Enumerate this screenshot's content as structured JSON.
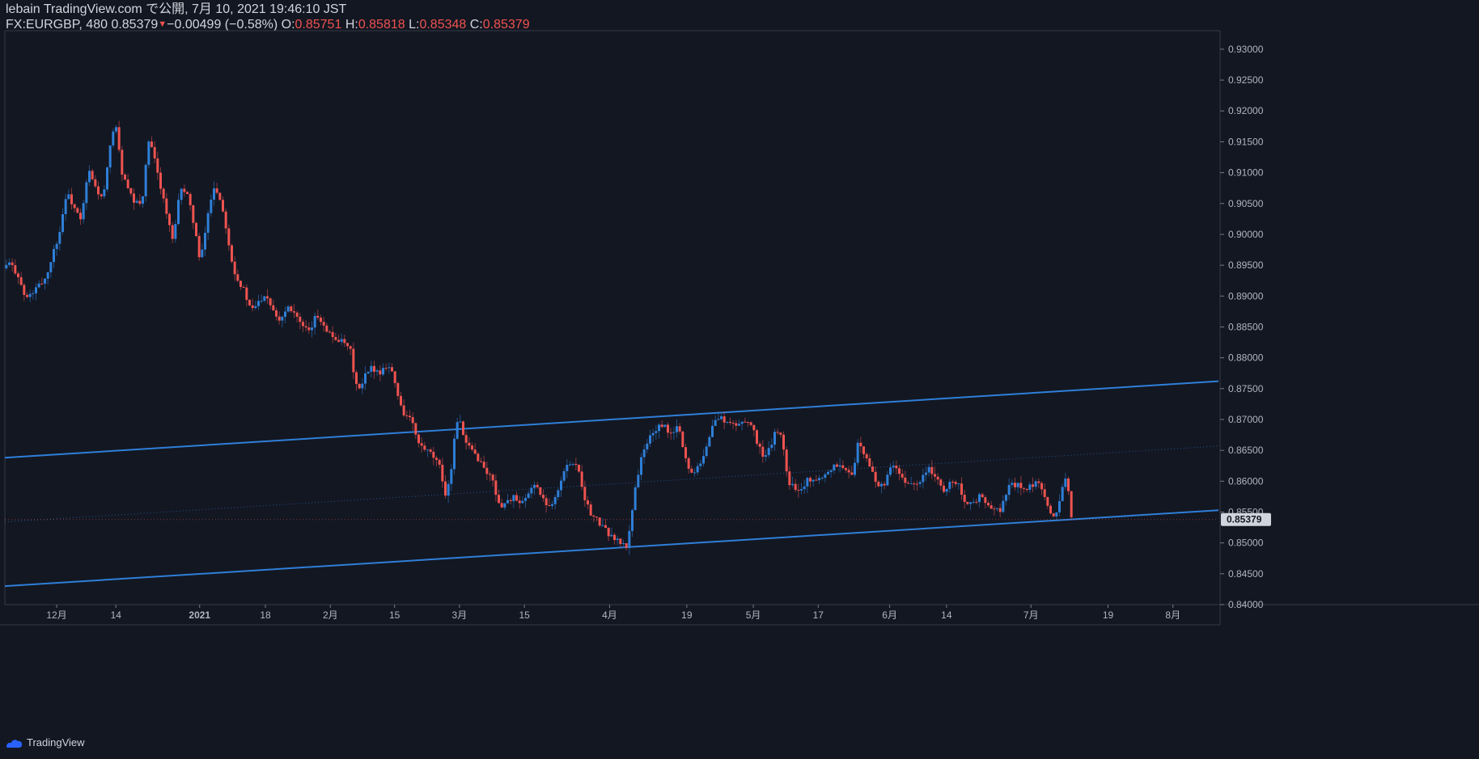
{
  "header": {
    "author_line": "lebain TradingView.com で公開, 7月 10, 2021 19:46:10 JST",
    "symbol": "FX:EURGBP, 480",
    "last": "0.85379",
    "change": "−0.00499 (−0.58%)",
    "o_label": "O:",
    "o_value": "0.85751",
    "h_label": "H:",
    "h_value": "0.85818",
    "l_label": "L:",
    "l_value": "0.85348",
    "c_label": "C:",
    "c_value": "0.85379"
  },
  "footer": {
    "brand": "TradingView"
  },
  "colors": {
    "background": "#131722",
    "up": "#2962ff",
    "candle_up": "#2f7fd8",
    "candle_down": "#ef5350",
    "trendline": "#2f7fd8",
    "axis_text": "#b2b5be",
    "price_label_bg": "#d1d4dc"
  },
  "chart_data": {
    "type": "candlestick",
    "symbol": "FX:EURGBP",
    "interval": "480",
    "ylim": [
      0.84,
      0.933
    ],
    "yticks": [
      "0.93000",
      "0.92500",
      "0.92000",
      "0.91500",
      "0.91000",
      "0.90500",
      "0.90000",
      "0.89500",
      "0.89000",
      "0.88500",
      "0.88000",
      "0.87500",
      "0.87000",
      "0.86500",
      "0.86000",
      "0.85500",
      "0.85000",
      "0.84500",
      "0.84000"
    ],
    "last_price_label": "0.85379",
    "x_ticks": [
      {
        "label": "12月",
        "t": 0.0427
      },
      {
        "label": "14",
        "t": 0.0915
      },
      {
        "label": "2021",
        "t": 0.1605
      },
      {
        "label": "18",
        "t": 0.2147
      },
      {
        "label": "2月",
        "t": 0.2682
      },
      {
        "label": "15",
        "t": 0.3211
      },
      {
        "label": "3月",
        "t": 0.3746
      },
      {
        "label": "15",
        "t": 0.4281
      },
      {
        "label": "4月",
        "t": 0.4983
      },
      {
        "label": "19",
        "t": 0.5619
      },
      {
        "label": "5月",
        "t": 0.6167
      },
      {
        "label": "17",
        "t": 0.6702
      },
      {
        "label": "6月",
        "t": 0.7291
      },
      {
        "label": "14",
        "t": 0.7759
      },
      {
        "label": "7月",
        "t": 0.8455
      },
      {
        "label": "19",
        "t": 0.909
      },
      {
        "label": "8月",
        "t": 0.9625
      }
    ],
    "close_path": [
      [
        0.0,
        0.8945
      ],
      [
        0.005,
        0.8953
      ],
      [
        0.012,
        0.8935
      ],
      [
        0.018,
        0.8895
      ],
      [
        0.024,
        0.8905
      ],
      [
        0.03,
        0.8918
      ],
      [
        0.036,
        0.8933
      ],
      [
        0.04,
        0.8965
      ],
      [
        0.046,
        0.9
      ],
      [
        0.052,
        0.9068
      ],
      [
        0.058,
        0.9045
      ],
      [
        0.064,
        0.902
      ],
      [
        0.07,
        0.9105
      ],
      [
        0.076,
        0.9075
      ],
      [
        0.082,
        0.9055
      ],
      [
        0.088,
        0.914
      ],
      [
        0.092,
        0.919
      ],
      [
        0.097,
        0.9105
      ],
      [
        0.102,
        0.9075
      ],
      [
        0.108,
        0.905
      ],
      [
        0.114,
        0.905
      ],
      [
        0.12,
        0.9155
      ],
      [
        0.124,
        0.9125
      ],
      [
        0.13,
        0.9075
      ],
      [
        0.136,
        0.902
      ],
      [
        0.14,
        0.8985
      ],
      [
        0.146,
        0.908
      ],
      [
        0.152,
        0.906
      ],
      [
        0.158,
        0.901
      ],
      [
        0.162,
        0.895
      ],
      [
        0.166,
        0.9
      ],
      [
        0.17,
        0.905
      ],
      [
        0.174,
        0.908
      ],
      [
        0.178,
        0.906
      ],
      [
        0.182,
        0.903
      ],
      [
        0.188,
        0.896
      ],
      [
        0.192,
        0.893
      ],
      [
        0.198,
        0.891
      ],
      [
        0.204,
        0.8875
      ],
      [
        0.21,
        0.889
      ],
      [
        0.216,
        0.8905
      ],
      [
        0.222,
        0.888
      ],
      [
        0.228,
        0.886
      ],
      [
        0.234,
        0.8885
      ],
      [
        0.24,
        0.8875
      ],
      [
        0.246,
        0.885
      ],
      [
        0.252,
        0.884
      ],
      [
        0.258,
        0.887
      ],
      [
        0.264,
        0.8855
      ],
      [
        0.27,
        0.8835
      ],
      [
        0.276,
        0.883
      ],
      [
        0.282,
        0.882
      ],
      [
        0.286,
        0.881
      ],
      [
        0.29,
        0.876
      ],
      [
        0.294,
        0.8745
      ],
      [
        0.298,
        0.877
      ],
      [
        0.304,
        0.8785
      ],
      [
        0.31,
        0.8775
      ],
      [
        0.316,
        0.879
      ],
      [
        0.32,
        0.878
      ],
      [
        0.324,
        0.8745
      ],
      [
        0.33,
        0.871
      ],
      [
        0.336,
        0.87
      ],
      [
        0.342,
        0.866
      ],
      [
        0.348,
        0.865
      ],
      [
        0.354,
        0.864
      ],
      [
        0.36,
        0.862
      ],
      [
        0.364,
        0.858
      ],
      [
        0.368,
        0.86
      ],
      [
        0.372,
        0.868
      ],
      [
        0.376,
        0.8705
      ],
      [
        0.38,
        0.866
      ],
      [
        0.386,
        0.865
      ],
      [
        0.392,
        0.8635
      ],
      [
        0.398,
        0.8615
      ],
      [
        0.404,
        0.86
      ],
      [
        0.408,
        0.856
      ],
      [
        0.414,
        0.8565
      ],
      [
        0.42,
        0.8575
      ],
      [
        0.426,
        0.856
      ],
      [
        0.432,
        0.8575
      ],
      [
        0.438,
        0.86
      ],
      [
        0.444,
        0.857
      ],
      [
        0.45,
        0.856
      ],
      [
        0.456,
        0.858
      ],
      [
        0.462,
        0.8615
      ],
      [
        0.468,
        0.8635
      ],
      [
        0.474,
        0.862
      ],
      [
        0.478,
        0.858
      ],
      [
        0.484,
        0.8545
      ],
      [
        0.49,
        0.8535
      ],
      [
        0.496,
        0.852
      ],
      [
        0.502,
        0.851
      ],
      [
        0.508,
        0.85
      ],
      [
        0.514,
        0.8493
      ],
      [
        0.516,
        0.852
      ],
      [
        0.52,
        0.8585
      ],
      [
        0.526,
        0.864
      ],
      [
        0.532,
        0.867
      ],
      [
        0.538,
        0.8685
      ],
      [
        0.544,
        0.869
      ],
      [
        0.55,
        0.8675
      ],
      [
        0.556,
        0.869
      ],
      [
        0.56,
        0.8655
      ],
      [
        0.566,
        0.861
      ],
      [
        0.572,
        0.8625
      ],
      [
        0.578,
        0.8645
      ],
      [
        0.584,
        0.869
      ],
      [
        0.59,
        0.8705
      ],
      [
        0.596,
        0.8695
      ],
      [
        0.602,
        0.869
      ],
      [
        0.608,
        0.8695
      ],
      [
        0.614,
        0.87
      ],
      [
        0.62,
        0.867
      ],
      [
        0.626,
        0.864
      ],
      [
        0.63,
        0.8645
      ],
      [
        0.636,
        0.868
      ],
      [
        0.642,
        0.867
      ],
      [
        0.646,
        0.86
      ],
      [
        0.652,
        0.859
      ],
      [
        0.658,
        0.859
      ],
      [
        0.664,
        0.8605
      ],
      [
        0.67,
        0.86
      ],
      [
        0.676,
        0.861
      ],
      [
        0.682,
        0.862
      ],
      [
        0.688,
        0.863
      ],
      [
        0.694,
        0.8615
      ],
      [
        0.7,
        0.8615
      ],
      [
        0.704,
        0.866
      ],
      [
        0.71,
        0.864
      ],
      [
        0.716,
        0.8615
      ],
      [
        0.72,
        0.8595
      ],
      [
        0.726,
        0.859
      ],
      [
        0.732,
        0.863
      ],
      [
        0.738,
        0.861
      ],
      [
        0.744,
        0.8595
      ],
      [
        0.75,
        0.86
      ],
      [
        0.756,
        0.86
      ],
      [
        0.762,
        0.8625
      ],
      [
        0.768,
        0.8605
      ],
      [
        0.774,
        0.8585
      ],
      [
        0.78,
        0.8595
      ],
      [
        0.786,
        0.86
      ],
      [
        0.792,
        0.857
      ],
      [
        0.798,
        0.856
      ],
      [
        0.804,
        0.8575
      ],
      [
        0.81,
        0.8565
      ],
      [
        0.816,
        0.855
      ],
      [
        0.822,
        0.8555
      ],
      [
        0.828,
        0.859
      ],
      [
        0.834,
        0.8595
      ],
      [
        0.84,
        0.859
      ],
      [
        0.846,
        0.859
      ],
      [
        0.852,
        0.86
      ],
      [
        0.858,
        0.857
      ],
      [
        0.862,
        0.855
      ],
      [
        0.866,
        0.8545
      ],
      [
        0.87,
        0.8565
      ],
      [
        0.874,
        0.861
      ],
      [
        0.878,
        0.8585
      ],
      [
        0.88,
        0.8538
      ]
    ],
    "trendlines": [
      {
        "name": "upper",
        "from": [
          0.0,
          0.8638
        ],
        "to": [
          1.0,
          0.8762
        ],
        "style": "solid"
      },
      {
        "name": "lower",
        "from": [
          0.0,
          0.843
        ],
        "to": [
          1.0,
          0.8553
        ],
        "style": "solid"
      },
      {
        "name": "mid",
        "from": [
          0.0,
          0.8534
        ],
        "to": [
          1.0,
          0.8657
        ],
        "style": "dotted"
      }
    ]
  }
}
